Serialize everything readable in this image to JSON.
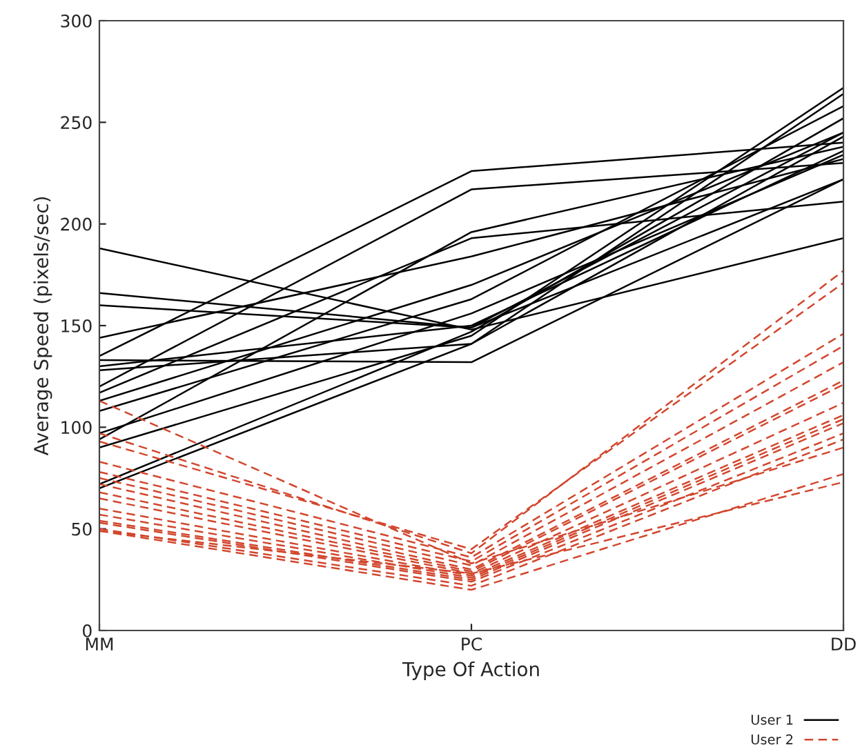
{
  "chart_data": {
    "type": "line",
    "xlabel": "Type Of Action",
    "ylabel": "Average Speed (pixels/sec)",
    "categories": [
      "MM",
      "PC",
      "DD"
    ],
    "ylim": [
      0,
      300
    ],
    "yticks": [
      0,
      50,
      100,
      150,
      200,
      250,
      300
    ],
    "grid": false,
    "legend": "bottom right",
    "series": [
      {
        "name": "User 1",
        "color": "#000000",
        "line_style": "solid",
        "values": [
          188,
          148,
          193
        ]
      },
      {
        "color": "#000000",
        "line_style": "solid",
        "values": [
          166,
          149,
          245
        ]
      },
      {
        "color": "#000000",
        "line_style": "solid",
        "values": [
          160,
          149,
          222
        ]
      },
      {
        "color": "#000000",
        "line_style": "solid",
        "values": [
          144,
          184,
          232
        ]
      },
      {
        "color": "#000000",
        "line_style": "solid",
        "values": [
          135,
          226,
          240
        ]
      },
      {
        "color": "#000000",
        "line_style": "solid",
        "values": [
          133,
          132,
          222
        ]
      },
      {
        "color": "#000000",
        "line_style": "solid",
        "values": [
          130,
          150,
          236
        ]
      },
      {
        "color": "#000000",
        "line_style": "solid",
        "values": [
          128,
          141,
          264
        ]
      },
      {
        "color": "#000000",
        "line_style": "solid",
        "values": [
          120,
          217,
          230
        ]
      },
      {
        "color": "#000000",
        "line_style": "solid",
        "values": [
          117,
          193,
          211
        ]
      },
      {
        "color": "#000000",
        "line_style": "solid",
        "values": [
          113,
          170,
          245
        ]
      },
      {
        "color": "#000000",
        "line_style": "solid",
        "values": [
          108,
          163,
          258
        ]
      },
      {
        "color": "#000000",
        "line_style": "solid",
        "values": [
          97,
          156,
          234
        ]
      },
      {
        "color": "#000000",
        "line_style": "solid",
        "values": [
          94,
          196,
          238
        ]
      },
      {
        "color": "#000000",
        "line_style": "solid",
        "values": [
          90,
          145,
          267
        ]
      },
      {
        "color": "#000000",
        "line_style": "solid",
        "values": [
          72,
          147,
          252
        ]
      },
      {
        "color": "#000000",
        "line_style": "solid",
        "values": [
          70,
          141,
          243
        ]
      },
      {
        "name": "User 2",
        "color": "#d2462d",
        "line_style": "dashed",
        "values": [
          113,
          33,
          90
        ]
      },
      {
        "color": "#d2462d",
        "line_style": "dashed",
        "values": [
          97,
          38,
          177
        ]
      },
      {
        "color": "#d2462d",
        "line_style": "dashed",
        "values": [
          93,
          40,
          171
        ]
      },
      {
        "color": "#d2462d",
        "line_style": "dashed",
        "values": [
          83,
          36,
          146
        ]
      },
      {
        "color": "#d2462d",
        "line_style": "dashed",
        "values": [
          78,
          34,
          140
        ]
      },
      {
        "color": "#d2462d",
        "line_style": "dashed",
        "values": [
          75,
          32,
          132
        ]
      },
      {
        "color": "#d2462d",
        "line_style": "dashed",
        "values": [
          72,
          30,
          123
        ]
      },
      {
        "color": "#d2462d",
        "line_style": "dashed",
        "values": [
          68,
          29,
          121
        ]
      },
      {
        "color": "#d2462d",
        "line_style": "dashed",
        "values": [
          65,
          28,
          112
        ]
      },
      {
        "color": "#d2462d",
        "line_style": "dashed",
        "values": [
          60,
          27,
          106
        ]
      },
      {
        "color": "#d2462d",
        "line_style": "dashed",
        "values": [
          57,
          26,
          104
        ]
      },
      {
        "color": "#d2462d",
        "line_style": "dashed",
        "values": [
          54,
          25,
          102
        ]
      },
      {
        "color": "#d2462d",
        "line_style": "dashed",
        "values": [
          53,
          24,
          97
        ]
      },
      {
        "color": "#d2462d",
        "line_style": "dashed",
        "values": [
          50,
          22,
          94
        ]
      },
      {
        "color": "#d2462d",
        "line_style": "dashed",
        "values": [
          49,
          20,
          77
        ]
      },
      {
        "color": "#d2462d",
        "line_style": "dashed",
        "values": [
          49,
          28,
          73
        ]
      }
    ]
  }
}
